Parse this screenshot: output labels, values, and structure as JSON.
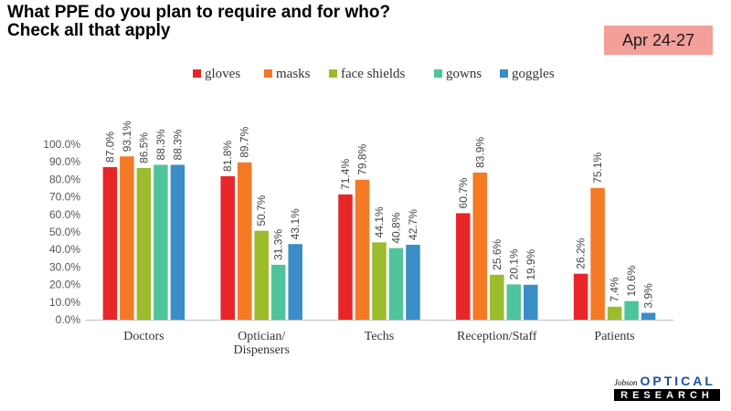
{
  "header": {
    "title_line1": "What PPE do you plan to require and for who?",
    "title_line2": "Check all that apply",
    "date_badge": "Apr 24-27"
  },
  "logo": {
    "small": "Jobson",
    "big": "OPTICAL",
    "bottom": "RESEARCH"
  },
  "chart_data": {
    "type": "bar",
    "categories": [
      "Doctors",
      "Optician/\nDispensers",
      "Techs",
      "Reception/Staff",
      "Patients"
    ],
    "series": [
      {
        "name": "gloves",
        "color": "#e8262a",
        "values": [
          87.0,
          81.8,
          71.4,
          60.7,
          26.2
        ]
      },
      {
        "name": "masks",
        "color": "#f47a25",
        "values": [
          93.1,
          89.7,
          79.8,
          83.9,
          75.1
        ]
      },
      {
        "name": "face shields",
        "color": "#9cbb2d",
        "values": [
          86.5,
          50.7,
          44.1,
          25.6,
          7.4
        ]
      },
      {
        "name": "gowns",
        "color": "#4fc39b",
        "values": [
          88.3,
          31.3,
          40.8,
          20.1,
          10.6
        ]
      },
      {
        "name": "goggles",
        "color": "#3a8dc6",
        "values": [
          88.3,
          43.1,
          42.7,
          19.9,
          3.9
        ]
      }
    ],
    "yticks": [
      "0.0%",
      "10.0%",
      "20.0%",
      "30.0%",
      "40.0%",
      "50.0%",
      "60.0%",
      "70.0%",
      "80.0%",
      "90.0%",
      "100.0%"
    ],
    "ylim": [
      0,
      100
    ],
    "value_format": "percent_1dp",
    "legend": "top",
    "grid": false
  }
}
